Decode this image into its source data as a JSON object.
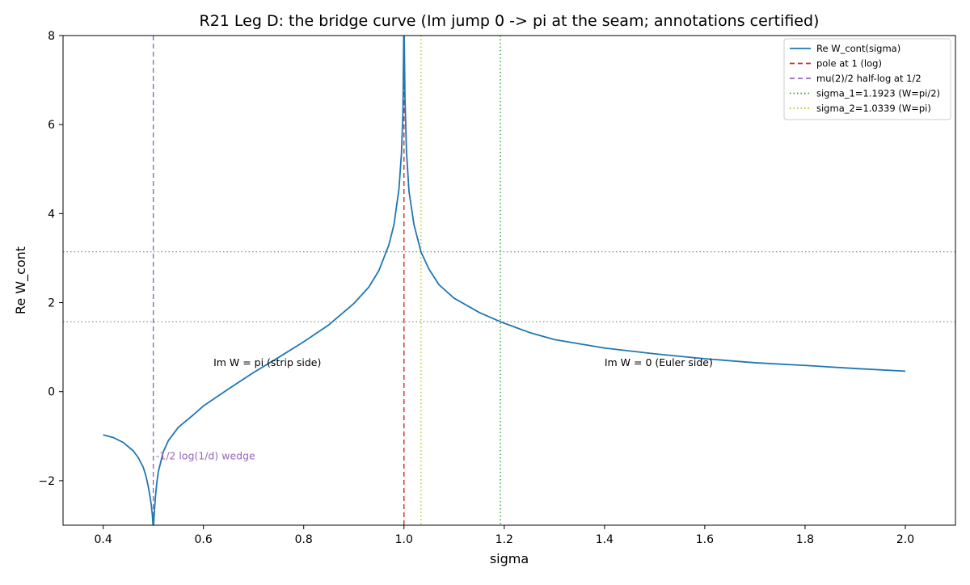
{
  "chart_data": {
    "type": "line",
    "title": "R21 Leg D: the bridge curve (Im jump 0 -> pi at the seam; annotations certified)",
    "xlabel": "sigma",
    "ylabel": "Re W_cont",
    "xlim": [
      0.32,
      2.1
    ],
    "ylim": [
      -3.0,
      8.0
    ],
    "grid": false,
    "legend_position": "top-right",
    "x_ticks": [
      0.4,
      0.6,
      0.8,
      1.0,
      1.2,
      1.4,
      1.6,
      1.8,
      2.0
    ],
    "x_tick_labels": [
      "0.4",
      "0.6",
      "0.8",
      "1.0",
      "1.2",
      "1.4",
      "1.6",
      "1.8",
      "2.0"
    ],
    "y_ticks": [
      -2,
      0,
      2,
      4,
      6,
      8
    ],
    "y_tick_labels": [
      "−2",
      "0",
      "2",
      "4",
      "6",
      "8"
    ],
    "series": [
      {
        "name": "Re W_cont(sigma)",
        "color": "#1f77b4",
        "line_style": "solid",
        "x": [
          0.4,
          0.42,
          0.44,
          0.46,
          0.47,
          0.48,
          0.485,
          0.49,
          0.493,
          0.496,
          0.498,
          0.499,
          0.4995,
          0.5005,
          0.501,
          0.502,
          0.504,
          0.507,
          0.51,
          0.52,
          0.53,
          0.55,
          0.58,
          0.6,
          0.65,
          0.7,
          0.75,
          0.8,
          0.85,
          0.9,
          0.93,
          0.95,
          0.97,
          0.98,
          0.99,
          0.995,
          0.998,
          0.9995,
          1.0005,
          1.002,
          1.005,
          1.01,
          1.02,
          1.0339,
          1.05,
          1.07,
          1.1,
          1.15,
          1.1923,
          1.25,
          1.3,
          1.4,
          1.5,
          1.6,
          1.7,
          1.8,
          1.9,
          2.0
        ],
        "y": [
          -0.97,
          -1.03,
          -1.14,
          -1.33,
          -1.48,
          -1.7,
          -1.88,
          -2.13,
          -2.32,
          -2.55,
          -2.75,
          -2.92,
          -3.0,
          -3.0,
          -2.92,
          -2.72,
          -2.4,
          -2.05,
          -1.8,
          -1.35,
          -1.1,
          -0.8,
          -0.52,
          -0.32,
          0.06,
          0.43,
          0.77,
          1.12,
          1.5,
          1.98,
          2.35,
          2.72,
          3.3,
          3.75,
          4.55,
          5.35,
          6.3,
          8.0,
          8.0,
          6.6,
          5.4,
          4.5,
          3.75,
          3.1416,
          2.75,
          2.4,
          2.1,
          1.78,
          1.5708,
          1.33,
          1.17,
          0.98,
          0.85,
          0.74,
          0.65,
          0.59,
          0.52,
          0.46
        ]
      }
    ],
    "vertical_lines": [
      {
        "name": "pole at 1 (log)",
        "x": 1.0,
        "color": "#d62728",
        "style": "dashed"
      },
      {
        "name": "mu(2)/2 half-log at 1/2",
        "x": 0.5,
        "color": "#9467bd",
        "style": "dashed"
      },
      {
        "name": "sigma_1=1.1923 (W=pi/2)",
        "x": 1.1923,
        "color": "#2ca02c",
        "style": "dotted"
      },
      {
        "name": "sigma_2=1.0339 (W=pi)",
        "x": 1.0339,
        "color": "#bcbd22",
        "style": "dotted"
      }
    ],
    "horizontal_lines": [
      {
        "y": 3.1416,
        "color": "#808080",
        "style": "dotted"
      },
      {
        "y": 1.5708,
        "color": "#808080",
        "style": "dotted"
      }
    ],
    "legend": [
      {
        "label": "Re W_cont(sigma)",
        "color": "#1f77b4",
        "style": "solid"
      },
      {
        "label": "pole at 1 (log)",
        "color": "#d62728",
        "style": "dashed"
      },
      {
        "label": "mu(2)/2 half-log at 1/2",
        "color": "#9467bd",
        "style": "dashed"
      },
      {
        "label": "sigma_1=1.1923 (W=pi/2)",
        "color": "#2ca02c",
        "style": "dotted"
      },
      {
        "label": "sigma_2=1.0339 (W=pi)",
        "color": "#bcbd22",
        "style": "dotted"
      }
    ],
    "annotations": [
      {
        "text": "Im W = pi (strip side)",
        "x": 0.62,
        "y": 0.58,
        "color": "#000000"
      },
      {
        "text": "Im W = 0 (Euler side)",
        "x": 1.4,
        "y": 0.58,
        "color": "#000000"
      },
      {
        "text": "-1/2 log(1/d) wedge",
        "x": 0.505,
        "y": -1.52,
        "color": "#9467bd"
      }
    ]
  }
}
